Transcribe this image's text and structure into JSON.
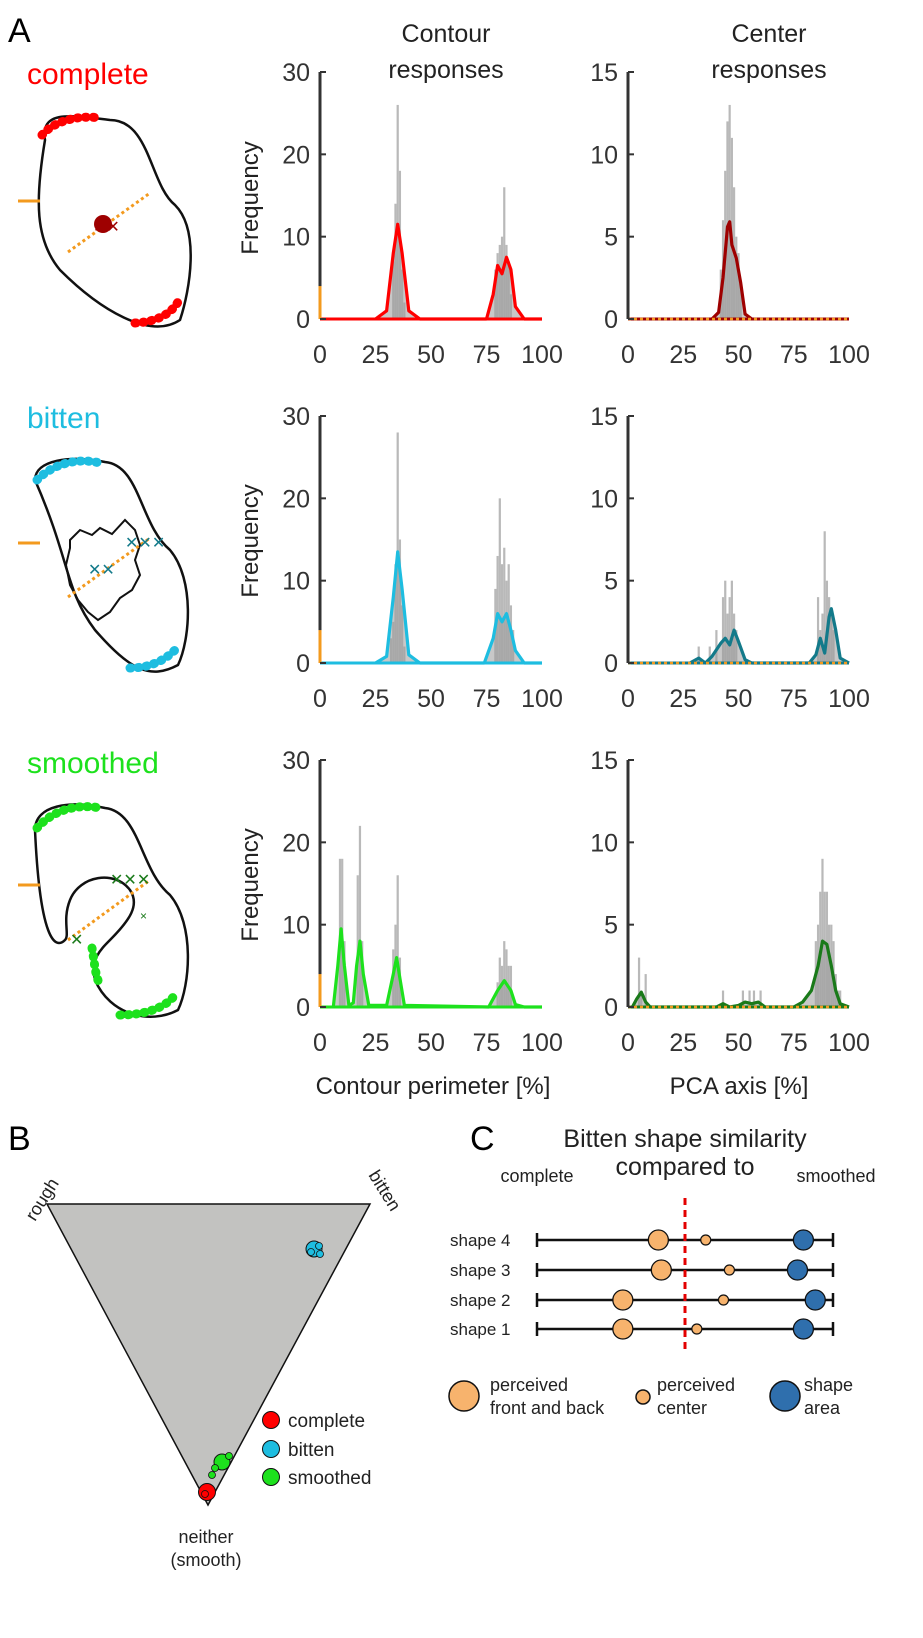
{
  "panel_letters": {
    "a": "A",
    "b": "B",
    "c": "C"
  },
  "column_titles": {
    "contour": [
      "Contour",
      "responses"
    ],
    "center": [
      "Center",
      "responses"
    ]
  },
  "x_labels": {
    "contour": "Contour perimeter [%]",
    "center": "PCA axis [%]"
  },
  "y_label": "Frequency",
  "rows": [
    {
      "label": "complete",
      "color": "#ff0000",
      "dark_color": "#9e0000"
    },
    {
      "label": "bitten",
      "color": "#1ebde0",
      "dark_color": "#137a8a"
    },
    {
      "label": "smoothed",
      "color": "#1de11d",
      "dark_color": "#1a7a1a"
    }
  ],
  "colors": {
    "hist": "#b9b9b9",
    "orange": "#f39a1e",
    "dashed": "#e30000",
    "triangle": "#c2c2c0",
    "light_orange": "#f7b36d",
    "blue": "#2f6fad"
  },
  "chart_data": [
    {
      "type": "bar",
      "title": "Contour responses",
      "ylabel": "Frequency",
      "ylim": [
        0,
        30
      ],
      "yticks": [
        0,
        10,
        20,
        30
      ],
      "xlim": [
        0,
        100
      ],
      "xticks": [
        0,
        25,
        50,
        75,
        100
      ],
      "color_key": "complete",
      "hist": [
        [
          33,
          7
        ],
        [
          34,
          14
        ],
        [
          35,
          26
        ],
        [
          36,
          18
        ],
        [
          37,
          6
        ],
        [
          38,
          2
        ],
        [
          79,
          6
        ],
        [
          80,
          8
        ],
        [
          81,
          9
        ],
        [
          82,
          10
        ],
        [
          83,
          16
        ],
        [
          84,
          9
        ],
        [
          85,
          7
        ],
        [
          86,
          3
        ]
      ],
      "curve": [
        [
          25,
          0
        ],
        [
          30,
          1
        ],
        [
          33,
          8
        ],
        [
          35,
          11.5
        ],
        [
          37,
          8
        ],
        [
          40,
          1
        ],
        [
          45,
          0
        ],
        [
          75,
          0
        ],
        [
          78,
          3
        ],
        [
          80,
          6.5
        ],
        [
          82,
          5.5
        ],
        [
          84,
          7.5
        ],
        [
          86,
          6
        ],
        [
          88,
          1.5
        ],
        [
          92,
          0
        ],
        [
          100,
          0
        ]
      ],
      "orange_marker": 4
    },
    {
      "type": "bar",
      "title": "Center responses",
      "ylim": [
        0,
        15
      ],
      "yticks": [
        0,
        5,
        10,
        15
      ],
      "xlim": [
        0,
        100
      ],
      "xticks": [
        0,
        25,
        50,
        75,
        100
      ],
      "color_key": "complete",
      "hist": [
        [
          42,
          3
        ],
        [
          43,
          6
        ],
        [
          44,
          9
        ],
        [
          45,
          12
        ],
        [
          46,
          13
        ],
        [
          47,
          11
        ],
        [
          48,
          8
        ],
        [
          49,
          5
        ],
        [
          50,
          4
        ],
        [
          51,
          2
        ]
      ],
      "curve": [
        [
          38,
          0
        ],
        [
          41,
          0.4
        ],
        [
          43,
          2.5
        ],
        [
          45,
          5.6
        ],
        [
          46,
          5.9
        ],
        [
          47,
          4.5
        ],
        [
          49,
          3.7
        ],
        [
          51,
          2.2
        ],
        [
          53,
          0.3
        ],
        [
          56,
          0
        ]
      ]
    },
    {
      "type": "bar",
      "ylabel": "Frequency",
      "ylim": [
        0,
        30
      ],
      "yticks": [
        0,
        10,
        20,
        30
      ],
      "xlim": [
        0,
        100
      ],
      "xticks": [
        0,
        25,
        50,
        75,
        100
      ],
      "color_key": "bitten",
      "hist": [
        [
          32,
          3
        ],
        [
          33,
          5
        ],
        [
          34,
          12
        ],
        [
          35,
          28
        ],
        [
          36,
          15
        ],
        [
          37,
          7
        ],
        [
          38,
          2
        ],
        [
          79,
          9
        ],
        [
          80,
          13
        ],
        [
          81,
          20
        ],
        [
          82,
          12
        ],
        [
          83,
          14
        ],
        [
          84,
          10
        ],
        [
          85,
          12
        ],
        [
          86,
          7
        ],
        [
          87,
          4
        ]
      ],
      "curve": [
        [
          25,
          0
        ],
        [
          30,
          0.8
        ],
        [
          33,
          8
        ],
        [
          35,
          13.5
        ],
        [
          37,
          9
        ],
        [
          40,
          1
        ],
        [
          45,
          0
        ],
        [
          74,
          0
        ],
        [
          78,
          3
        ],
        [
          80,
          6
        ],
        [
          82,
          5
        ],
        [
          84,
          6
        ],
        [
          86,
          4
        ],
        [
          88,
          1.5
        ],
        [
          92,
          0
        ],
        [
          100,
          0
        ]
      ],
      "orange_marker": 4
    },
    {
      "type": "bar",
      "ylim": [
        0,
        15
      ],
      "yticks": [
        0,
        5,
        10,
        15
      ],
      "xlim": [
        0,
        100
      ],
      "xticks": [
        0,
        25,
        50,
        75,
        100
      ],
      "color_key": "bitten",
      "hist": [
        [
          32,
          1
        ],
        [
          37,
          1
        ],
        [
          40,
          2
        ],
        [
          43,
          4
        ],
        [
          44,
          5
        ],
        [
          45,
          3
        ],
        [
          46,
          4
        ],
        [
          47,
          5
        ],
        [
          48,
          3
        ],
        [
          49,
          2
        ],
        [
          86,
          4
        ],
        [
          87,
          2
        ],
        [
          88,
          3
        ],
        [
          89,
          8
        ],
        [
          90,
          5
        ],
        [
          91,
          4
        ],
        [
          92,
          3
        ],
        [
          93,
          2
        ]
      ],
      "curve": [
        [
          28,
          0
        ],
        [
          32,
          0.3
        ],
        [
          35,
          0
        ],
        [
          38,
          0.4
        ],
        [
          42,
          1.2
        ],
        [
          44,
          1.5
        ],
        [
          46,
          1.1
        ],
        [
          48,
          2
        ],
        [
          50,
          1.3
        ],
        [
          53,
          0.2
        ],
        [
          56,
          0
        ],
        [
          82,
          0
        ],
        [
          85,
          0.5
        ],
        [
          87,
          1.5
        ],
        [
          89,
          0.6
        ],
        [
          91,
          2.8
        ],
        [
          92,
          3.3
        ],
        [
          94,
          2
        ],
        [
          96,
          0.3
        ],
        [
          100,
          0
        ]
      ]
    },
    {
      "type": "bar",
      "ylabel": "Frequency",
      "ylim": [
        0,
        30
      ],
      "yticks": [
        0,
        10,
        20,
        30
      ],
      "xlim": [
        0,
        100
      ],
      "xticks": [
        0,
        25,
        50,
        75,
        100
      ],
      "color_key": "smoothed",
      "xlabel": "Contour perimeter [%]",
      "hist": [
        [
          9,
          18
        ],
        [
          10,
          18
        ],
        [
          11,
          8
        ],
        [
          17,
          16
        ],
        [
          18,
          22
        ],
        [
          19,
          8
        ],
        [
          33,
          7
        ],
        [
          34,
          10
        ],
        [
          35,
          16
        ],
        [
          36,
          6
        ],
        [
          80,
          3
        ],
        [
          81,
          6
        ],
        [
          82,
          5
        ],
        [
          83,
          8
        ],
        [
          84,
          7
        ],
        [
          85,
          5
        ],
        [
          86,
          5
        ]
      ],
      "curve": [
        [
          6,
          0
        ],
        [
          8,
          5
        ],
        [
          9.5,
          9.5
        ],
        [
          11,
          5
        ],
        [
          13,
          0.2
        ],
        [
          15,
          0.5
        ],
        [
          16.5,
          5
        ],
        [
          18,
          8
        ],
        [
          19.5,
          4
        ],
        [
          22,
          0.2
        ],
        [
          30,
          0.2
        ],
        [
          33,
          4
        ],
        [
          34.5,
          6
        ],
        [
          36,
          3.5
        ],
        [
          38,
          0.2
        ],
        [
          76,
          0
        ],
        [
          80,
          2
        ],
        [
          83,
          3.2
        ],
        [
          86,
          2
        ],
        [
          88,
          0.3
        ],
        [
          92,
          0
        ],
        [
          100,
          0
        ]
      ],
      "orange_marker": 4
    },
    {
      "type": "bar",
      "ylim": [
        0,
        15
      ],
      "yticks": [
        0,
        5,
        10,
        15
      ],
      "xlim": [
        0,
        100
      ],
      "xticks": [
        0,
        25,
        50,
        75,
        100
      ],
      "color_key": "smoothed",
      "xlabel": "PCA axis [%]",
      "hist": [
        [
          5,
          3
        ],
        [
          6,
          1
        ],
        [
          8,
          2
        ],
        [
          43,
          1
        ],
        [
          52,
          1
        ],
        [
          55,
          1
        ],
        [
          57,
          1
        ],
        [
          60,
          1
        ],
        [
          85,
          4
        ],
        [
          86,
          5
        ],
        [
          87,
          7
        ],
        [
          88,
          9
        ],
        [
          89,
          7
        ],
        [
          90,
          7
        ],
        [
          91,
          5
        ],
        [
          92,
          5
        ],
        [
          93,
          4
        ],
        [
          94,
          2
        ],
        [
          95,
          1
        ],
        [
          96,
          1
        ]
      ],
      "curve": [
        [
          2,
          0
        ],
        [
          4,
          0.5
        ],
        [
          6,
          0.9
        ],
        [
          8,
          0.3
        ],
        [
          10,
          0
        ],
        [
          40,
          0
        ],
        [
          43,
          0.2
        ],
        [
          46,
          0
        ],
        [
          50,
          0.1
        ],
        [
          53,
          0.3
        ],
        [
          56,
          0.2
        ],
        [
          59,
          0.3
        ],
        [
          62,
          0
        ],
        [
          75,
          0
        ],
        [
          79,
          0.3
        ],
        [
          83,
          1
        ],
        [
          86,
          2.5
        ],
        [
          88,
          4
        ],
        [
          90,
          3.8
        ],
        [
          92,
          2.5
        ],
        [
          94,
          1
        ],
        [
          96,
          0.2
        ],
        [
          100,
          0
        ]
      ]
    }
  ],
  "panel_b": {
    "corner_labels": {
      "top_left": "rough",
      "top_right": "bitten",
      "bottom": [
        "neither",
        "(smooth)"
      ]
    },
    "legend": [
      {
        "label": "complete",
        "color": "#ff0000"
      },
      {
        "label": "bitten",
        "color": "#1ebde0"
      },
      {
        "label": "smoothed",
        "color": "#1de11d"
      }
    ]
  },
  "panel_c": {
    "title": [
      "Bitten shape similarity",
      "compared to"
    ],
    "end_labels": {
      "left": "complete",
      "right": "smoothed"
    },
    "rows": [
      {
        "label": "shape 4",
        "front_back": 0.41,
        "center": 0.57,
        "area": 0.9
      },
      {
        "label": "shape 3",
        "front_back": 0.42,
        "center": 0.65,
        "area": 0.88
      },
      {
        "label": "shape 2",
        "front_back": 0.29,
        "center": 0.63,
        "area": 0.94
      },
      {
        "label": "shape 1",
        "front_back": 0.29,
        "center": 0.54,
        "area": 0.9
      }
    ],
    "legend": [
      {
        "label": [
          "perceived",
          "front and back"
        ],
        "kind": "front_back"
      },
      {
        "label": [
          "perceived",
          "center"
        ],
        "kind": "center"
      },
      {
        "label": [
          "shape",
          "area"
        ],
        "kind": "area"
      }
    ]
  }
}
